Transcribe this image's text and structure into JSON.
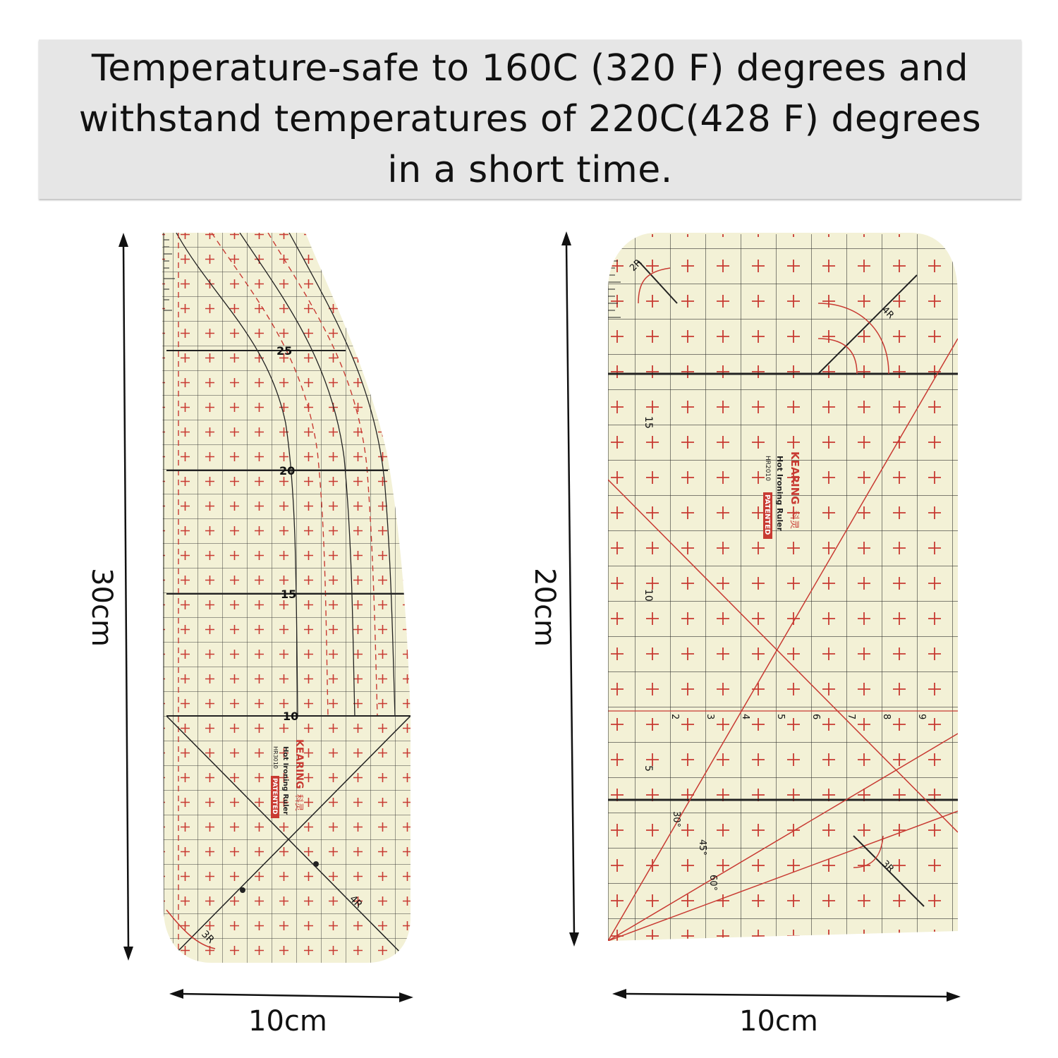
{
  "banner": {
    "text": "Temperature-safe to 160C (320 F) degrees and withstand temperatures of 220C(428 F) degrees in a short time."
  },
  "left_ruler": {
    "height_label": "30cm",
    "width_label": "10cm",
    "brand": "KEARING",
    "brand_cn": "科灵",
    "product": "Hot Ironing Ruler",
    "model": "HR3010",
    "patent": "PATENTED",
    "major_marks": [
      "25",
      "20",
      "15",
      "10"
    ],
    "corner_label": "3R",
    "angle_label": "4R"
  },
  "right_ruler": {
    "height_label": "20cm",
    "width_label": "10cm",
    "brand": "KEARING",
    "brand_cn": "科灵",
    "product": "Hot Ironing Ruler",
    "model": "HR2010",
    "patent": "PATENTED",
    "major_marks": [
      "15",
      "10",
      "5"
    ],
    "bottom_row_numbers": [
      "2",
      "3",
      "4",
      "5",
      "6",
      "7",
      "8",
      "9"
    ],
    "corner_labels": [
      "2R",
      "4R",
      "3R"
    ],
    "angle_labels": [
      "30°",
      "45°",
      "60°"
    ]
  },
  "colors": {
    "ruler_fill": "#f3f1d6",
    "grid_line": "#1a1a1a",
    "accent_red": "#c83a32",
    "banner_bg": "#e6e6e6"
  }
}
